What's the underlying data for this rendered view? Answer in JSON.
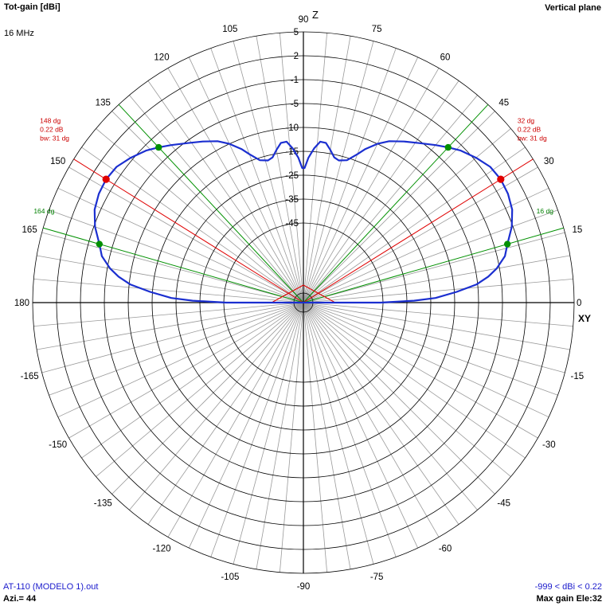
{
  "header": {
    "title": "Tot-gain [dBi]",
    "frequency": "16 MHz",
    "plane": "Vertical plane"
  },
  "footer": {
    "file": "AT-110 (MODELO 1).out",
    "azimuth": "Azi.= 44",
    "range": "-999 < dBi < 0.22",
    "max_gain": "Max gain Ele:32"
  },
  "axis_labels": {
    "top": "Z",
    "right": "XY"
  },
  "colors": {
    "pattern": "#1b2fd0",
    "max_marker": "#e00000",
    "half_power_marker": "#009000",
    "grid": "#9a9a9a",
    "axes": "#000000",
    "label_text": "#000000",
    "footer_text": "#1a1acc",
    "annotation_red": "#cc0000",
    "annotation_green": "#008000"
  },
  "chart_data": {
    "type": "polar",
    "title": "Tot-gain [dBi]",
    "angle_unit": "degrees elevation",
    "angle_ticks": [
      0,
      15,
      30,
      45,
      60,
      75,
      90,
      105,
      120,
      135,
      150,
      165,
      180,
      -165,
      -150,
      -135,
      -120,
      -105,
      -90,
      -75,
      -60,
      -45,
      -30,
      -15
    ],
    "radial_ticks": [
      5,
      2,
      -1,
      -5,
      -10,
      -15,
      -25,
      -35,
      -45
    ],
    "max_gain_dbi": 0.22,
    "max_gain_elevation": 32,
    "beamwidth_deg": 31,
    "max_gain_markers": [
      {
        "angle": 32,
        "gain_dbi": 0.22,
        "labels": [
          "32 dg",
          "0.22 dB",
          "bw: 31 dg"
        ]
      },
      {
        "angle": 148,
        "gain_dbi": 0.22,
        "labels": [
          "148 dg",
          "0.22 dB",
          "bw: 31 dg"
        ]
      }
    ],
    "half_power_markers": [
      {
        "angle": 16,
        "gain_dbi": -2.8,
        "label": "16 dg"
      },
      {
        "angle": 47,
        "gain_dbi": -2.8
      },
      {
        "angle": 133,
        "gain_dbi": -2.8
      },
      {
        "angle": 164,
        "gain_dbi": -2.8,
        "label": "164 dg"
      }
    ],
    "series": [
      {
        "points": [
          {
            "angle": 0,
            "gain_dbi": -46
          },
          {
            "angle": 1,
            "gain_dbi": -32
          },
          {
            "angle": 2,
            "gain_dbi": -23
          },
          {
            "angle": 4,
            "gain_dbi": -14.5
          },
          {
            "angle": 6,
            "gain_dbi": -10.2
          },
          {
            "angle": 8,
            "gain_dbi": -7.6
          },
          {
            "angle": 10,
            "gain_dbi": -5.6
          },
          {
            "angle": 13,
            "gain_dbi": -3.7
          },
          {
            "angle": 16,
            "gain_dbi": -2.8
          },
          {
            "angle": 20,
            "gain_dbi": -1.2
          },
          {
            "angle": 24,
            "gain_dbi": -0.3
          },
          {
            "angle": 28,
            "gain_dbi": 0.1
          },
          {
            "angle": 32,
            "gain_dbi": 0.22
          },
          {
            "angle": 36,
            "gain_dbi": 0.0
          },
          {
            "angle": 40,
            "gain_dbi": -0.7
          },
          {
            "angle": 44,
            "gain_dbi": -1.7
          },
          {
            "angle": 47,
            "gain_dbi": -2.8
          },
          {
            "angle": 50,
            "gain_dbi": -3.9
          },
          {
            "angle": 54,
            "gain_dbi": -5.4
          },
          {
            "angle": 58,
            "gain_dbi": -6.9
          },
          {
            "angle": 62,
            "gain_dbi": -8.4
          },
          {
            "angle": 65,
            "gain_dbi": -10.0
          },
          {
            "angle": 68,
            "gain_dbi": -12.0
          },
          {
            "angle": 70,
            "gain_dbi": -13.6
          },
          {
            "angle": 73,
            "gain_dbi": -16.0
          },
          {
            "angle": 76,
            "gain_dbi": -17.0
          },
          {
            "angle": 78,
            "gain_dbi": -16.2
          },
          {
            "angle": 80,
            "gain_dbi": -14.2
          },
          {
            "angle": 82,
            "gain_dbi": -12.9
          },
          {
            "angle": 84,
            "gain_dbi": -12.8
          },
          {
            "angle": 86,
            "gain_dbi": -14.3
          },
          {
            "angle": 88,
            "gain_dbi": -17.6
          },
          {
            "angle": 89.5,
            "gain_dbi": -22.0
          },
          {
            "angle": 90.5,
            "gain_dbi": -22.0
          },
          {
            "angle": 92,
            "gain_dbi": -17.6
          },
          {
            "angle": 94,
            "gain_dbi": -14.3
          },
          {
            "angle": 96,
            "gain_dbi": -12.8
          },
          {
            "angle": 98,
            "gain_dbi": -12.9
          },
          {
            "angle": 100,
            "gain_dbi": -14.2
          },
          {
            "angle": 102,
            "gain_dbi": -16.2
          },
          {
            "angle": 104,
            "gain_dbi": -17.0
          },
          {
            "angle": 107,
            "gain_dbi": -16.0
          },
          {
            "angle": 110,
            "gain_dbi": -13.6
          },
          {
            "angle": 112,
            "gain_dbi": -12.0
          },
          {
            "angle": 115,
            "gain_dbi": -10.0
          },
          {
            "angle": 118,
            "gain_dbi": -8.4
          },
          {
            "angle": 122,
            "gain_dbi": -6.9
          },
          {
            "angle": 126,
            "gain_dbi": -5.4
          },
          {
            "angle": 130,
            "gain_dbi": -3.9
          },
          {
            "angle": 133,
            "gain_dbi": -2.8
          },
          {
            "angle": 136,
            "gain_dbi": -1.7
          },
          {
            "angle": 140,
            "gain_dbi": -0.7
          },
          {
            "angle": 144,
            "gain_dbi": 0.0
          },
          {
            "angle": 148,
            "gain_dbi": 0.22
          },
          {
            "angle": 152,
            "gain_dbi": 0.1
          },
          {
            "angle": 156,
            "gain_dbi": -0.3
          },
          {
            "angle": 160,
            "gain_dbi": -1.2
          },
          {
            "angle": 164,
            "gain_dbi": -2.8
          },
          {
            "angle": 167,
            "gain_dbi": -3.7
          },
          {
            "angle": 170,
            "gain_dbi": -5.6
          },
          {
            "angle": 172,
            "gain_dbi": -7.6
          },
          {
            "angle": 174,
            "gain_dbi": -10.2
          },
          {
            "angle": 176,
            "gain_dbi": -14.5
          },
          {
            "angle": 178,
            "gain_dbi": -23
          },
          {
            "angle": 179,
            "gain_dbi": -32
          },
          {
            "angle": 180,
            "gain_dbi": -46
          }
        ]
      }
    ]
  }
}
